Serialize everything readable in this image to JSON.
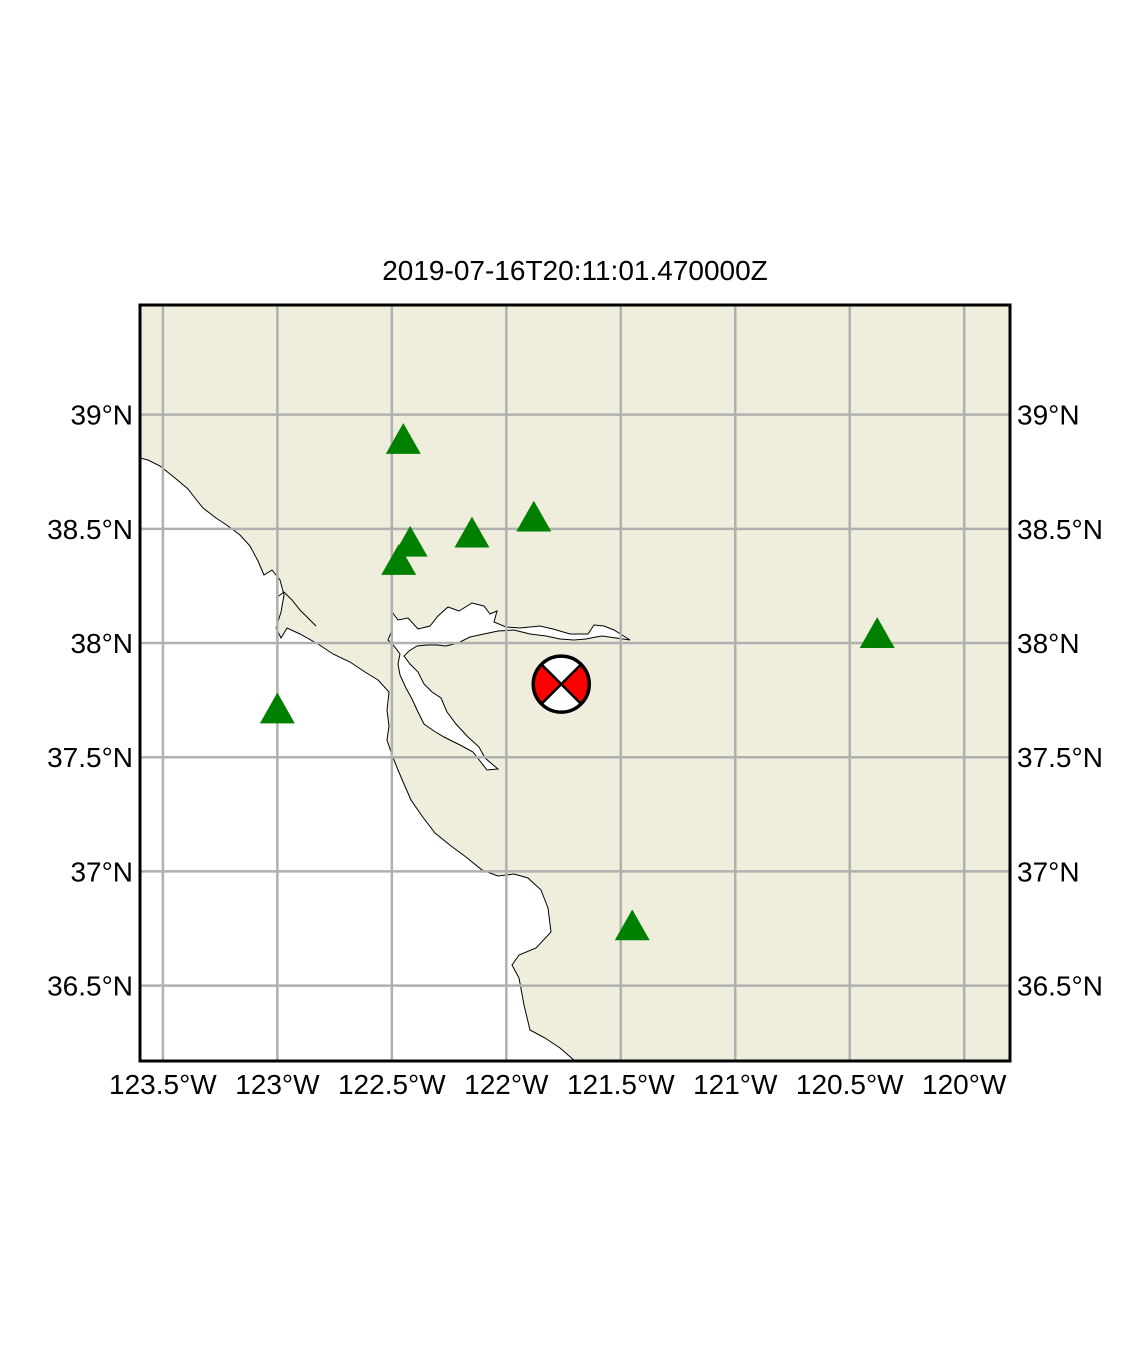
{
  "title": "2019-07-16T20:11:01.470000Z",
  "map": {
    "lon_range": [
      -123.6,
      -119.8
    ],
    "lat_range": [
      36.17,
      39.48
    ],
    "land_color": "#efeedc",
    "water_color": "#ffffff",
    "grid_color": "#b0b0b0",
    "station_color": "#008000",
    "station_symbol": "triangle",
    "gridlines": true
  },
  "axes": {
    "lon_ticks": [
      {
        "value": -123.5,
        "label": "123.5°W"
      },
      {
        "value": -123.0,
        "label": "123°W"
      },
      {
        "value": -122.5,
        "label": "122.5°W"
      },
      {
        "value": -122.0,
        "label": "122°W"
      },
      {
        "value": -121.5,
        "label": "121.5°W"
      },
      {
        "value": -121.0,
        "label": "121°W"
      },
      {
        "value": -120.5,
        "label": "120.5°W"
      },
      {
        "value": -120.0,
        "label": "120°W"
      }
    ],
    "lat_ticks": [
      {
        "value": 39.0,
        "label": "39°N"
      },
      {
        "value": 38.5,
        "label": "38.5°N"
      },
      {
        "value": 38.0,
        "label": "38°N"
      },
      {
        "value": 37.5,
        "label": "37.5°N"
      },
      {
        "value": 37.0,
        "label": "37°N"
      },
      {
        "value": 36.5,
        "label": "36.5°N"
      }
    ]
  },
  "stations": [
    {
      "lon": -122.45,
      "lat": 38.88
    },
    {
      "lon": -122.42,
      "lat": 38.43
    },
    {
      "lon": -122.47,
      "lat": 38.35
    },
    {
      "lon": -122.15,
      "lat": 38.47
    },
    {
      "lon": -121.88,
      "lat": 38.54
    },
    {
      "lon": -123.0,
      "lat": 37.7
    },
    {
      "lon": -120.38,
      "lat": 38.03
    },
    {
      "lon": -121.45,
      "lat": 36.75
    }
  ],
  "event": {
    "lon": -121.76,
    "lat": 37.82,
    "symbol": "focal-mechanism-beachball",
    "compression_color": "#ff0000",
    "dilatation_color": "#ffffff"
  },
  "chart_data": {
    "type": "scatter",
    "title": "2019-07-16T20:11:01.470000Z",
    "xlabel": "",
    "ylabel": "",
    "xlim": [
      -123.6,
      -119.8
    ],
    "ylim": [
      36.17,
      39.48
    ],
    "grid": true,
    "series": [
      {
        "x": [
          -122.45,
          -122.42,
          -122.47,
          -122.15,
          -121.88,
          -123.0,
          -120.38,
          -121.45
        ],
        "y": [
          38.88,
          38.43,
          38.35,
          38.47,
          38.54,
          37.7,
          38.03,
          36.75
        ]
      },
      {
        "x": [
          -121.76
        ],
        "y": [
          37.82
        ]
      }
    ]
  }
}
